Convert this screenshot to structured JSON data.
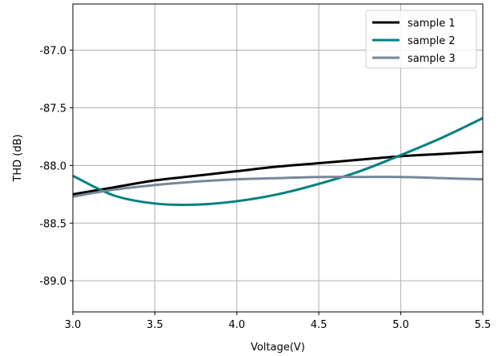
{
  "chart_data": {
    "type": "line",
    "title": "",
    "xlabel": "Voltage(V)",
    "ylabel": "THD (dB)",
    "xlim": [
      3.0,
      5.5
    ],
    "ylim": [
      -89.27,
      -86.6
    ],
    "xticks": [
      3.0,
      3.5,
      4.0,
      4.5,
      5.0,
      5.5
    ],
    "xtick_labels": [
      "3.0",
      "3.5",
      "4.0",
      "4.5",
      "5.0",
      "5.5"
    ],
    "yticks": [
      -87.0,
      -87.5,
      -88.0,
      -88.5,
      -89.0
    ],
    "ytick_labels": [
      "-87.0",
      "-87.5",
      "-88.0",
      "-88.5",
      "-89.0"
    ],
    "grid": true,
    "legend_position": "top-right",
    "x": [
      3.0,
      3.25,
      3.5,
      3.75,
      4.0,
      4.25,
      4.5,
      4.75,
      5.0,
      5.25,
      5.5
    ],
    "series": [
      {
        "name": "sample 1",
        "color": "#000000",
        "values": [
          -88.25,
          -88.19,
          -88.13,
          -88.09,
          -88.05,
          -88.01,
          -87.98,
          -87.95,
          -87.92,
          -87.9,
          -87.88
        ]
      },
      {
        "name": "sample 2",
        "color": "#008080",
        "values": [
          -88.09,
          -88.26,
          -88.33,
          -88.34,
          -88.31,
          -88.25,
          -88.16,
          -88.05,
          -87.91,
          -87.76,
          -87.59
        ]
      },
      {
        "name": "sample 3",
        "color": "#778899",
        "values": [
          -88.27,
          -88.21,
          -88.17,
          -88.14,
          -88.12,
          -88.11,
          -88.1,
          -88.1,
          -88.1,
          -88.11,
          -88.12
        ]
      }
    ]
  }
}
